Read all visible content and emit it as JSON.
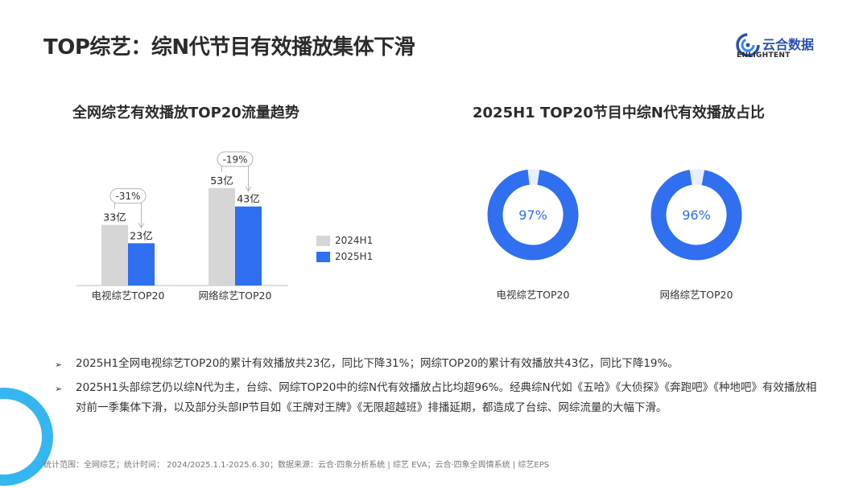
{
  "page": {
    "title": "TOP综艺：综N代节目有效播放集体下滑"
  },
  "logo": {
    "name_cn": "云合数据",
    "name_en": "ENLIGHTENT"
  },
  "colors": {
    "grey": "#d6d6d6",
    "blue": "#2f6ff0",
    "donut_track": "#e8eefc",
    "text_blue": "#2f6ff0"
  },
  "chart_data": [
    {
      "type": "bar",
      "title": "全网综艺有效播放TOP20流量趋势",
      "categories": [
        "电视综艺TOP20",
        "网络综艺TOP20"
      ],
      "series": [
        {
          "name": "2024H1",
          "values": [
            33,
            53
          ],
          "labels": [
            "33亿",
            "53亿"
          ]
        },
        {
          "name": "2025H1",
          "values": [
            23,
            43
          ],
          "labels": [
            "23亿",
            "43亿"
          ]
        }
      ],
      "annotations": [
        "-31%",
        "-19%"
      ],
      "ylim": [
        0,
        70
      ],
      "legend": "right"
    },
    {
      "type": "pie",
      "title": "2025H1 TOP20节目中综N代有效播放占比",
      "charts": [
        {
          "label": "电视综艺TOP20",
          "value": 97,
          "value_label": "97%"
        },
        {
          "label": "网络综艺TOP20",
          "value": 96,
          "value_label": "96%"
        }
      ]
    }
  ],
  "bullets": [
    {
      "marker": "➢",
      "text": "2025H1全网电视综艺TOP20的累计有效播放共23亿，同比下降31%；网综TOP20的累计有效播放共43亿，同比下降19%。"
    },
    {
      "marker": "➢",
      "text": "2025H1头部综艺仍以综N代为主，台综、网综TOP20中的综N代有效播放占比均超96%。经典综N代如《五哈》《大侦探》《奔跑吧》《种地吧》有效播放相对前一季集体下滑，以及部分头部IP节目如《王牌对王牌》《无限超越班》排播延期，都造成了台综、网综流量的大幅下滑。"
    }
  ],
  "footnote": "统计范围：全网综艺；统计时间：  2024/2025.1.1-2025.6.30；数据来源：云合·四象分析系统 | 综艺 EVA；云合·四象全舆情系统 | 综艺EPS"
}
